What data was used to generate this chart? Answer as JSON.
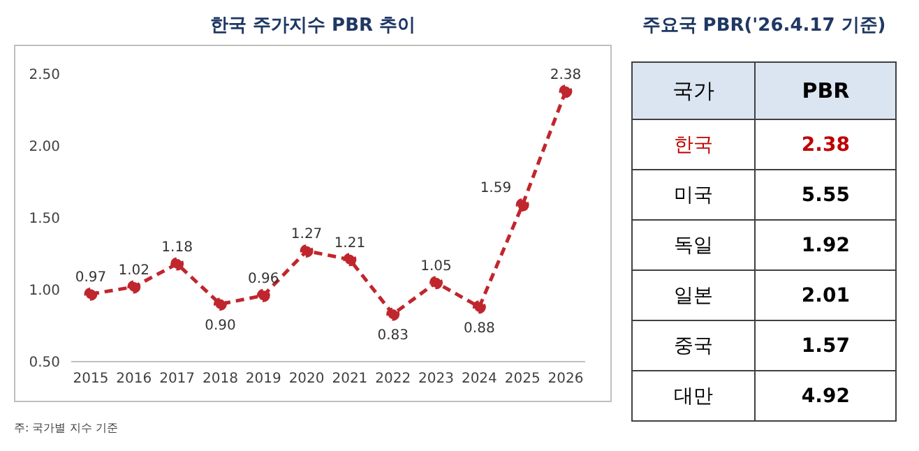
{
  "chart_data": [
    {
      "type": "line",
      "title": "한국 주가지수 PBR 추이",
      "categories": [
        "2015",
        "2016",
        "2017",
        "2018",
        "2019",
        "2020",
        "2021",
        "2022",
        "2023",
        "2024",
        "2025",
        "2026"
      ],
      "series": [
        {
          "color": "#c0262d",
          "values": [
            0.97,
            1.02,
            1.18,
            0.9,
            0.96,
            1.27,
            1.21,
            0.83,
            1.05,
            0.88,
            1.59,
            2.38
          ],
          "value_labels": [
            "0.97",
            "1.02",
            "1.18",
            "0.90",
            "0.96",
            "1.27",
            "1.21",
            "0.83",
            "1.05",
            "0.88",
            "1.59",
            "2.38"
          ]
        }
      ],
      "ylim": [
        0.5,
        2.5
      ],
      "yticks": [
        {
          "value": 0.5,
          "label": "0.50"
        },
        {
          "value": 1,
          "label": "1.00"
        },
        {
          "value": 1.5,
          "label": "1.50"
        },
        {
          "value": 2,
          "label": "2.00"
        },
        {
          "value": 2.5,
          "label": "2.50"
        }
      ],
      "grid": false,
      "marker": "circle",
      "line_style": "dashed",
      "data_labels": true,
      "legend": false,
      "annotations": [
        "주: 국가별 지수 기준"
      ]
    },
    {
      "type": "other",
      "title": "주요국 PBR('26.4.17 기준)",
      "xlabel": "국가",
      "ylabel": "PBR",
      "categories": [
        "한국",
        "미국",
        "독일",
        "일본",
        "중국",
        "대만"
      ],
      "values": [
        2.38,
        5.55,
        1.92,
        2.01,
        1.57,
        4.92
      ],
      "colors": [
        "#c00000",
        "#000000",
        "#000000",
        "#000000",
        "#000000",
        "#000000"
      ],
      "data_labels": true
    }
  ]
}
